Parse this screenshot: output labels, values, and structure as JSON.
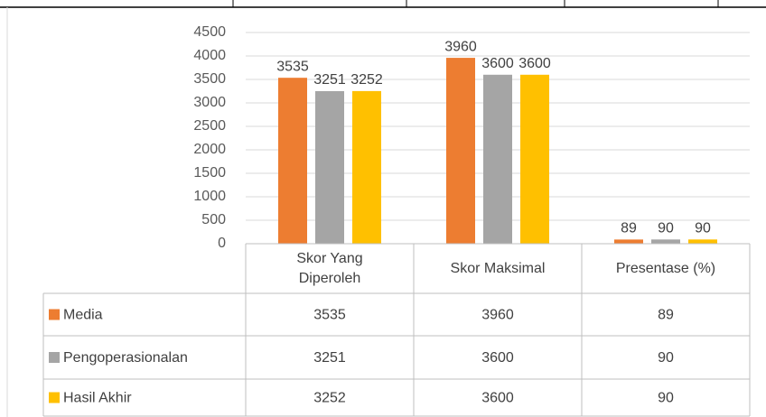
{
  "chart_data": {
    "type": "bar",
    "categories": [
      "Skor Yang Diperoleh",
      "Skor Maksimal",
      "Presentase (%)"
    ],
    "series": [
      {
        "name": "Media",
        "color": "#ED7D31",
        "values": [
          3535,
          3960,
          89
        ]
      },
      {
        "name": "Pengoperasionalan",
        "color": "#A5A5A5",
        "values": [
          3251,
          3600,
          90
        ]
      },
      {
        "name": "Hasil Akhir",
        "color": "#FFC000",
        "values": [
          3252,
          3600,
          90
        ]
      }
    ],
    "ylim": [
      0,
      4500
    ],
    "yticks": [
      0,
      500,
      1000,
      1500,
      2000,
      2500,
      3000,
      3500,
      4000,
      4500
    ],
    "grid": true,
    "data_table": true
  }
}
